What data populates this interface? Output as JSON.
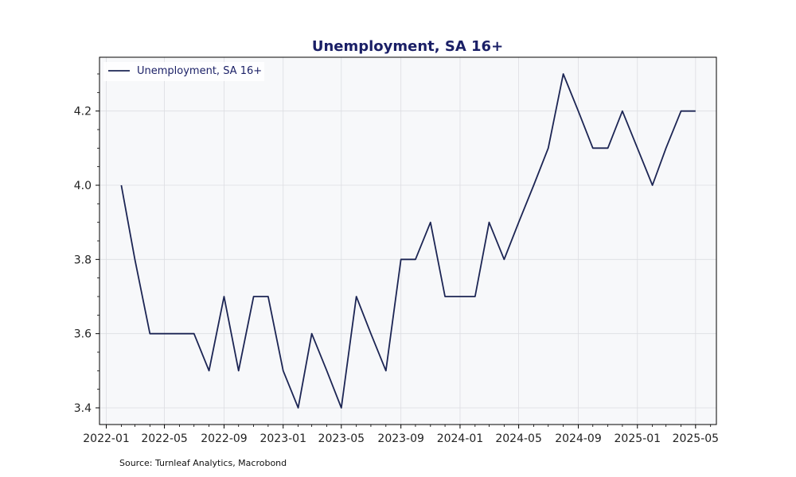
{
  "chart_data": {
    "type": "line",
    "title": "Unemployment, SA 16+",
    "xlabel": "",
    "ylabel": "",
    "ylim": [
      3.355,
      4.345
    ],
    "xlim": [
      "2021-12-18",
      "2025-06-13"
    ],
    "x_ticks": [
      "2022-01",
      "2022-05",
      "2022-09",
      "2023-01",
      "2023-05",
      "2023-09",
      "2024-01",
      "2024-05",
      "2024-09",
      "2025-01",
      "2025-05"
    ],
    "y_ticks": [
      "3.4",
      "3.6",
      "3.8",
      "4.0",
      "4.2"
    ],
    "y_minor_step": 0.05,
    "grid": true,
    "legend": "upper-left",
    "series": [
      {
        "name": "Unemployment, SA 16+",
        "color": "#1c2554",
        "x": [
          "2022-02",
          "2022-03",
          "2022-04",
          "2022-05",
          "2022-06",
          "2022-07",
          "2022-08",
          "2022-09",
          "2022-10",
          "2022-11",
          "2022-12",
          "2023-01",
          "2023-02",
          "2023-03",
          "2023-04",
          "2023-05",
          "2023-06",
          "2023-07",
          "2023-08",
          "2023-09",
          "2023-10",
          "2023-11",
          "2023-12",
          "2024-01",
          "2024-02",
          "2024-03",
          "2024-04",
          "2024-05",
          "2024-06",
          "2024-07",
          "2024-08",
          "2024-09",
          "2024-10",
          "2024-11",
          "2024-12",
          "2025-01",
          "2025-02",
          "2025-03",
          "2025-04",
          "2025-05"
        ],
        "values": [
          4.0,
          3.8,
          3.6,
          3.6,
          3.6,
          3.6,
          3.5,
          3.7,
          3.5,
          3.7,
          3.7,
          3.5,
          3.4,
          3.6,
          3.5,
          3.4,
          3.7,
          3.6,
          3.5,
          3.8,
          3.8,
          3.9,
          3.7,
          3.7,
          3.7,
          3.9,
          3.8,
          3.9,
          4.0,
          4.1,
          4.3,
          4.2,
          4.1,
          4.1,
          4.2,
          4.1,
          4.0,
          4.1,
          4.2,
          4.2
        ]
      }
    ],
    "source_note": "Source: Turnleaf Analytics, Macrobond",
    "colors": {
      "plot_background": "#f7f8fa",
      "grid": "#dcdde2",
      "title": "#1a1f66",
      "axis": "#000000"
    }
  }
}
